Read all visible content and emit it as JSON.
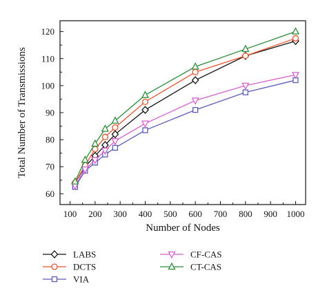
{
  "chart_data": {
    "type": "line",
    "title": "",
    "xlabel": "Number of Nodes",
    "ylabel": "Total Number of Transmissions",
    "xlim": [
      60,
      1040
    ],
    "ylim": [
      56,
      124
    ],
    "xticks": [
      100,
      200,
      300,
      400,
      500,
      600,
      700,
      800,
      900,
      1000
    ],
    "yticks": [
      60,
      70,
      80,
      90,
      100,
      110,
      120
    ],
    "grid": false,
    "legend_placement": "bottom, two columns below the plot",
    "x": [
      120,
      160,
      200,
      240,
      280,
      400,
      600,
      800,
      1000
    ],
    "series": [
      {
        "name": "LABS",
        "marker": "diamond",
        "color": "#111111",
        "values": [
          64.0,
          70.0,
          74.0,
          78.0,
          82.0,
          91.0,
          102.0,
          111.0,
          116.5
        ]
      },
      {
        "name": "DCTS",
        "marker": "circle",
        "color": "#e8542c",
        "values": [
          64.0,
          70.5,
          76.5,
          81.0,
          84.5,
          94.0,
          105.0,
          111.0,
          117.5
        ]
      },
      {
        "name": "VIA",
        "marker": "square",
        "color": "#5a5ab8",
        "values": [
          62.5,
          68.5,
          71.5,
          74.5,
          77.0,
          83.5,
          91.0,
          97.5,
          102.0
        ]
      },
      {
        "name": "CF-CAS",
        "marker": "triangle-down",
        "color": "#d65fcf",
        "values": [
          63.0,
          69.0,
          72.5,
          76.0,
          79.5,
          86.0,
          94.5,
          100.0,
          104.0
        ]
      },
      {
        "name": "CT-CAS",
        "marker": "triangle-up",
        "color": "#2e8b3a",
        "values": [
          64.5,
          72.5,
          78.5,
          84.0,
          87.0,
          96.5,
          107.0,
          113.5,
          120.0
        ]
      }
    ]
  }
}
